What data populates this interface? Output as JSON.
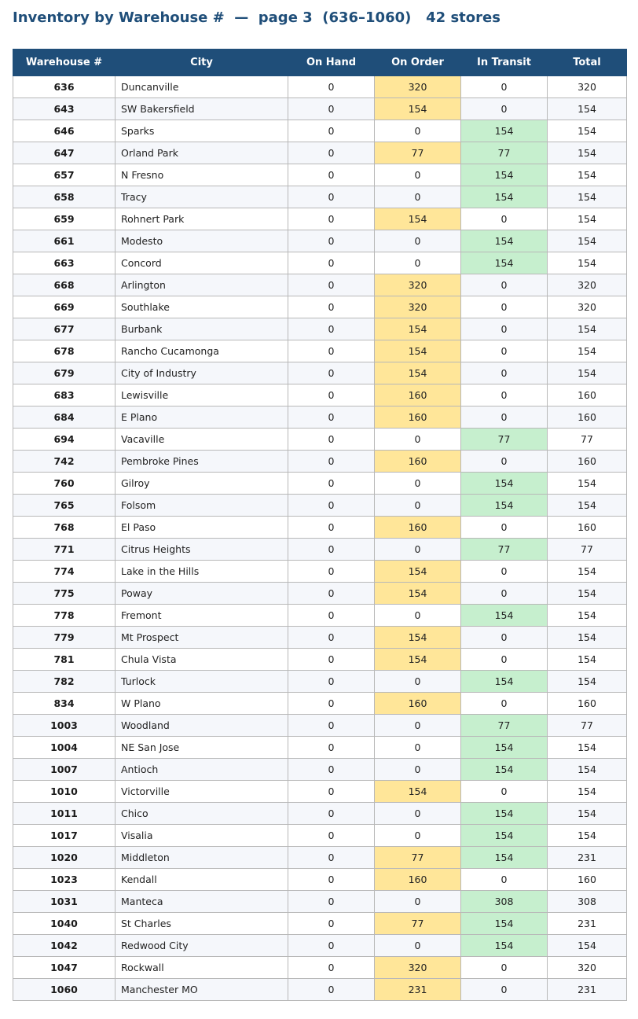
{
  "title": "Inventory by Warehouse #  —  page 3  (636–1060)   42 stores",
  "colors": {
    "header_bg": "#1f4e79",
    "on_order_highlight": "#ffe699",
    "in_transit_highlight": "#c6efce"
  },
  "columns": [
    "Warehouse #",
    "City",
    "On Hand",
    "On Order",
    "In Transit",
    "Total"
  ],
  "rows": [
    {
      "wh": "636",
      "city": "Duncanville",
      "on_hand": 0,
      "on_order": 320,
      "in_transit": 0,
      "total": 320
    },
    {
      "wh": "643",
      "city": "SW Bakersfield",
      "on_hand": 0,
      "on_order": 154,
      "in_transit": 0,
      "total": 154
    },
    {
      "wh": "646",
      "city": "Sparks",
      "on_hand": 0,
      "on_order": 0,
      "in_transit": 154,
      "total": 154
    },
    {
      "wh": "647",
      "city": "Orland Park",
      "on_hand": 0,
      "on_order": 77,
      "in_transit": 77,
      "total": 154
    },
    {
      "wh": "657",
      "city": "N Fresno",
      "on_hand": 0,
      "on_order": 0,
      "in_transit": 154,
      "total": 154
    },
    {
      "wh": "658",
      "city": "Tracy",
      "on_hand": 0,
      "on_order": 0,
      "in_transit": 154,
      "total": 154
    },
    {
      "wh": "659",
      "city": "Rohnert Park",
      "on_hand": 0,
      "on_order": 154,
      "in_transit": 0,
      "total": 154
    },
    {
      "wh": "661",
      "city": "Modesto",
      "on_hand": 0,
      "on_order": 0,
      "in_transit": 154,
      "total": 154
    },
    {
      "wh": "663",
      "city": "Concord",
      "on_hand": 0,
      "on_order": 0,
      "in_transit": 154,
      "total": 154
    },
    {
      "wh": "668",
      "city": "Arlington",
      "on_hand": 0,
      "on_order": 320,
      "in_transit": 0,
      "total": 320
    },
    {
      "wh": "669",
      "city": "Southlake",
      "on_hand": 0,
      "on_order": 320,
      "in_transit": 0,
      "total": 320
    },
    {
      "wh": "677",
      "city": "Burbank",
      "on_hand": 0,
      "on_order": 154,
      "in_transit": 0,
      "total": 154
    },
    {
      "wh": "678",
      "city": "Rancho Cucamonga",
      "on_hand": 0,
      "on_order": 154,
      "in_transit": 0,
      "total": 154
    },
    {
      "wh": "679",
      "city": "City of Industry",
      "on_hand": 0,
      "on_order": 154,
      "in_transit": 0,
      "total": 154
    },
    {
      "wh": "683",
      "city": "Lewisville",
      "on_hand": 0,
      "on_order": 160,
      "in_transit": 0,
      "total": 160
    },
    {
      "wh": "684",
      "city": "E Plano",
      "on_hand": 0,
      "on_order": 160,
      "in_transit": 0,
      "total": 160
    },
    {
      "wh": "694",
      "city": "Vacaville",
      "on_hand": 0,
      "on_order": 0,
      "in_transit": 77,
      "total": 77
    },
    {
      "wh": "742",
      "city": "Pembroke Pines",
      "on_hand": 0,
      "on_order": 160,
      "in_transit": 0,
      "total": 160
    },
    {
      "wh": "760",
      "city": "Gilroy",
      "on_hand": 0,
      "on_order": 0,
      "in_transit": 154,
      "total": 154
    },
    {
      "wh": "765",
      "city": "Folsom",
      "on_hand": 0,
      "on_order": 0,
      "in_transit": 154,
      "total": 154
    },
    {
      "wh": "768",
      "city": "El Paso",
      "on_hand": 0,
      "on_order": 160,
      "in_transit": 0,
      "total": 160
    },
    {
      "wh": "771",
      "city": "Citrus Heights",
      "on_hand": 0,
      "on_order": 0,
      "in_transit": 77,
      "total": 77
    },
    {
      "wh": "774",
      "city": "Lake in the Hills",
      "on_hand": 0,
      "on_order": 154,
      "in_transit": 0,
      "total": 154
    },
    {
      "wh": "775",
      "city": "Poway",
      "on_hand": 0,
      "on_order": 154,
      "in_transit": 0,
      "total": 154
    },
    {
      "wh": "778",
      "city": "Fremont",
      "on_hand": 0,
      "on_order": 0,
      "in_transit": 154,
      "total": 154
    },
    {
      "wh": "779",
      "city": "Mt Prospect",
      "on_hand": 0,
      "on_order": 154,
      "in_transit": 0,
      "total": 154
    },
    {
      "wh": "781",
      "city": "Chula Vista",
      "on_hand": 0,
      "on_order": 154,
      "in_transit": 0,
      "total": 154
    },
    {
      "wh": "782",
      "city": "Turlock",
      "on_hand": 0,
      "on_order": 0,
      "in_transit": 154,
      "total": 154
    },
    {
      "wh": "834",
      "city": "W Plano",
      "on_hand": 0,
      "on_order": 160,
      "in_transit": 0,
      "total": 160
    },
    {
      "wh": "1003",
      "city": "Woodland",
      "on_hand": 0,
      "on_order": 0,
      "in_transit": 77,
      "total": 77
    },
    {
      "wh": "1004",
      "city": "NE San Jose",
      "on_hand": 0,
      "on_order": 0,
      "in_transit": 154,
      "total": 154
    },
    {
      "wh": "1007",
      "city": "Antioch",
      "on_hand": 0,
      "on_order": 0,
      "in_transit": 154,
      "total": 154
    },
    {
      "wh": "1010",
      "city": "Victorville",
      "on_hand": 0,
      "on_order": 154,
      "in_transit": 0,
      "total": 154
    },
    {
      "wh": "1011",
      "city": "Chico",
      "on_hand": 0,
      "on_order": 0,
      "in_transit": 154,
      "total": 154
    },
    {
      "wh": "1017",
      "city": "Visalia",
      "on_hand": 0,
      "on_order": 0,
      "in_transit": 154,
      "total": 154
    },
    {
      "wh": "1020",
      "city": "Middleton",
      "on_hand": 0,
      "on_order": 77,
      "in_transit": 154,
      "total": 231
    },
    {
      "wh": "1023",
      "city": "Kendall",
      "on_hand": 0,
      "on_order": 160,
      "in_transit": 0,
      "total": 160
    },
    {
      "wh": "1031",
      "city": "Manteca",
      "on_hand": 0,
      "on_order": 0,
      "in_transit": 308,
      "total": 308
    },
    {
      "wh": "1040",
      "city": "St Charles",
      "on_hand": 0,
      "on_order": 77,
      "in_transit": 154,
      "total": 231
    },
    {
      "wh": "1042",
      "city": "Redwood City",
      "on_hand": 0,
      "on_order": 0,
      "in_transit": 154,
      "total": 154
    },
    {
      "wh": "1047",
      "city": "Rockwall",
      "on_hand": 0,
      "on_order": 320,
      "in_transit": 0,
      "total": 320
    },
    {
      "wh": "1060",
      "city": "Manchester MO",
      "on_hand": 0,
      "on_order": 231,
      "in_transit": 0,
      "total": 231
    }
  ]
}
